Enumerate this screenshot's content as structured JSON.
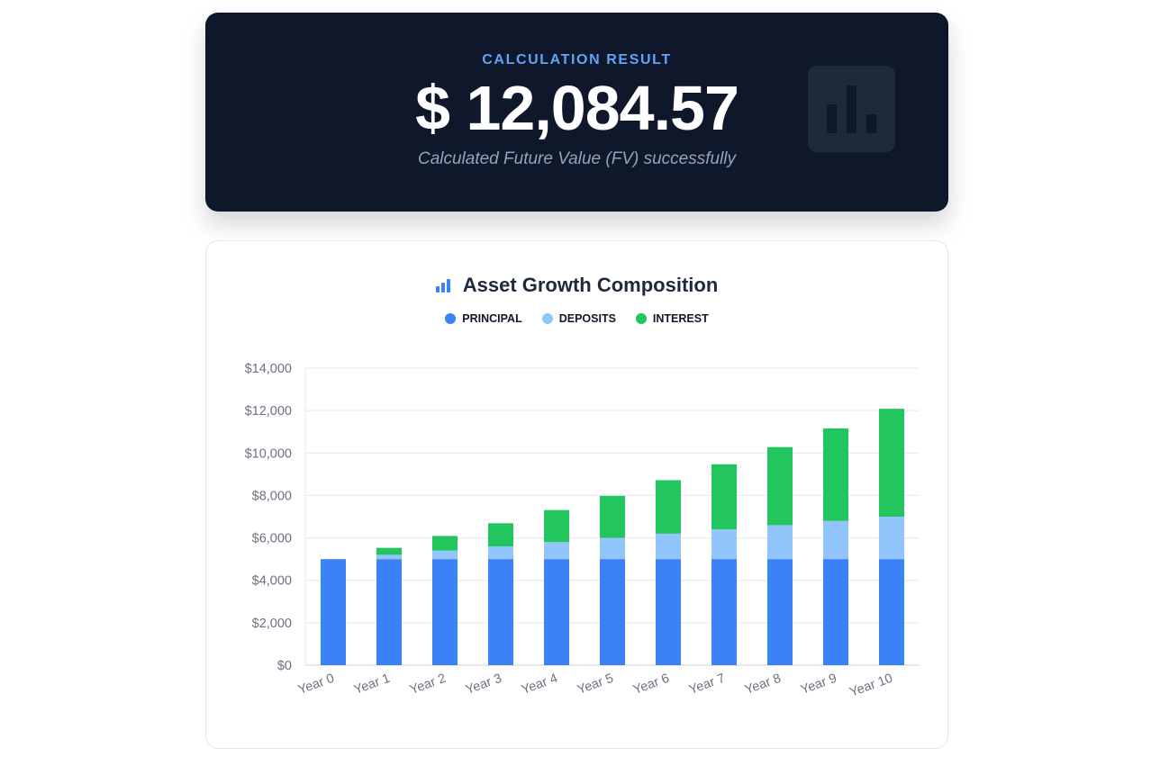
{
  "result": {
    "label": "CALCULATION RESULT",
    "value": "$ 12,084.57",
    "subtitle": "Calculated Future Value (FV) successfully",
    "icon": "bar-chart-icon"
  },
  "colors": {
    "principal": "#3b82f6",
    "deposits": "#93c5fd",
    "interest": "#22c55e",
    "card_bg": "#0f172a",
    "accent": "#60a5fa"
  },
  "chart_data": {
    "type": "bar",
    "stacked": true,
    "title": "Asset Growth Composition",
    "legend_position": "top",
    "grid": true,
    "categories": [
      "Year 0",
      "Year 1",
      "Year 2",
      "Year 3",
      "Year 4",
      "Year 5",
      "Year 6",
      "Year 7",
      "Year 8",
      "Year 9",
      "Year 10"
    ],
    "series": [
      {
        "name": "PRINCIPAL",
        "values": [
          5000,
          5000,
          5000,
          5000,
          5000,
          5000,
          5000,
          5000,
          5000,
          5000,
          5000
        ]
      },
      {
        "name": "DEPOSITS",
        "values": [
          0,
          200,
          400,
          600,
          800,
          1000,
          1200,
          1400,
          1600,
          1800,
          2000
        ]
      },
      {
        "name": "INTEREST",
        "values": [
          0,
          330,
          690,
          1090,
          1510,
          1980,
          2520,
          3070,
          3680,
          4360,
          5085
        ]
      }
    ],
    "ylim": [
      0,
      14000
    ],
    "yticks": [
      0,
      2000,
      4000,
      6000,
      8000,
      10000,
      12000,
      14000
    ],
    "ytick_labels": [
      "$0",
      "$2,000",
      "$4,000",
      "$6,000",
      "$8,000",
      "$10,000",
      "$12,000",
      "$14,000"
    ]
  }
}
